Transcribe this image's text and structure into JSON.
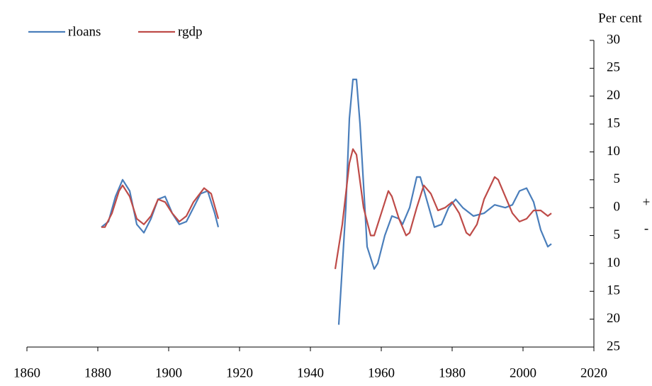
{
  "chart_data": {
    "type": "line",
    "y_label": "Per cent",
    "annotations": [
      "+",
      "-"
    ],
    "xlim": [
      1860,
      2020
    ],
    "xticks": [
      1860,
      1880,
      1900,
      1920,
      1940,
      1960,
      1980,
      2000,
      2020
    ],
    "ylim": [
      -25,
      30
    ],
    "yticks": [
      30,
      25,
      20,
      15,
      10,
      5,
      0,
      {
        "value": -5,
        "label": "5"
      },
      {
        "value": -10,
        "label": "10"
      },
      {
        "value": -15,
        "label": "15"
      },
      {
        "value": -20,
        "label": "20"
      },
      {
        "value": -25,
        "label": "25"
      }
    ],
    "legend": "top-left",
    "series": [
      {
        "name": "rloans",
        "color": "#4a7ebb",
        "x": [
          1881,
          1883,
          1885,
          1887,
          1889,
          1891,
          1893,
          1895,
          1897,
          1899,
          1901,
          1903,
          1905,
          1907,
          1909,
          1911,
          1913,
          1914,
          1930,
          1948,
          1950,
          1951,
          1952,
          1953,
          1954,
          1955,
          1956,
          1958,
          1959,
          1961,
          1963,
          1965,
          1966,
          1968,
          1970,
          1971,
          1973,
          1975,
          1977,
          1979,
          1981,
          1983,
          1986,
          1989,
          1992,
          1995,
          1997,
          1999,
          2001,
          2003,
          2005,
          2007,
          2008
        ],
        "values": [
          -3.5,
          -2.5,
          2,
          5,
          3,
          -3,
          -4.5,
          -2,
          1.5,
          2,
          -1,
          -3,
          -2.5,
          0,
          2.5,
          3,
          -1,
          -3.5,
          null,
          -21,
          0,
          16,
          23,
          23,
          15,
          4,
          -7,
          -11,
          -10,
          -5,
          -1.5,
          -2,
          -3,
          0,
          5.5,
          5.5,
          1,
          -3.5,
          -3,
          0,
          1.5,
          0,
          -1.5,
          -1,
          0.5,
          0,
          0.5,
          3,
          3.5,
          1,
          -4,
          -7,
          -6.5
        ]
      },
      {
        "name": "rgdp",
        "color": "#be4b48",
        "x": [
          1881,
          1882,
          1884,
          1886,
          1887,
          1889,
          1891,
          1893,
          1895,
          1897,
          1899,
          1901,
          1903,
          1905,
          1907,
          1910,
          1912,
          1914,
          1930,
          1947,
          1949,
          1951,
          1952,
          1953,
          1955,
          1957,
          1958,
          1960,
          1962,
          1963,
          1965,
          1967,
          1968,
          1970,
          1972,
          1974,
          1976,
          1978,
          1980,
          1982,
          1984,
          1985,
          1987,
          1989,
          1992,
          1993,
          1995,
          1997,
          1999,
          2001,
          2003,
          2005,
          2007,
          2008
        ],
        "values": [
          -3.5,
          -3.5,
          -1,
          3,
          4,
          2,
          -2,
          -3,
          -1.5,
          1.5,
          1,
          -1,
          -2.5,
          -1.5,
          1,
          3.5,
          2.5,
          -2,
          null,
          -11,
          -3,
          8,
          10.5,
          9.5,
          0,
          -5,
          -5,
          -1,
          3,
          2,
          -2,
          -5,
          -4.5,
          0,
          4,
          2.5,
          -0.5,
          0,
          1,
          -1,
          -4.5,
          -5,
          -3,
          1.5,
          5.5,
          5,
          2,
          -1,
          -2.5,
          -2,
          -0.5,
          -0.5,
          -1.5,
          -1
        ]
      }
    ]
  }
}
